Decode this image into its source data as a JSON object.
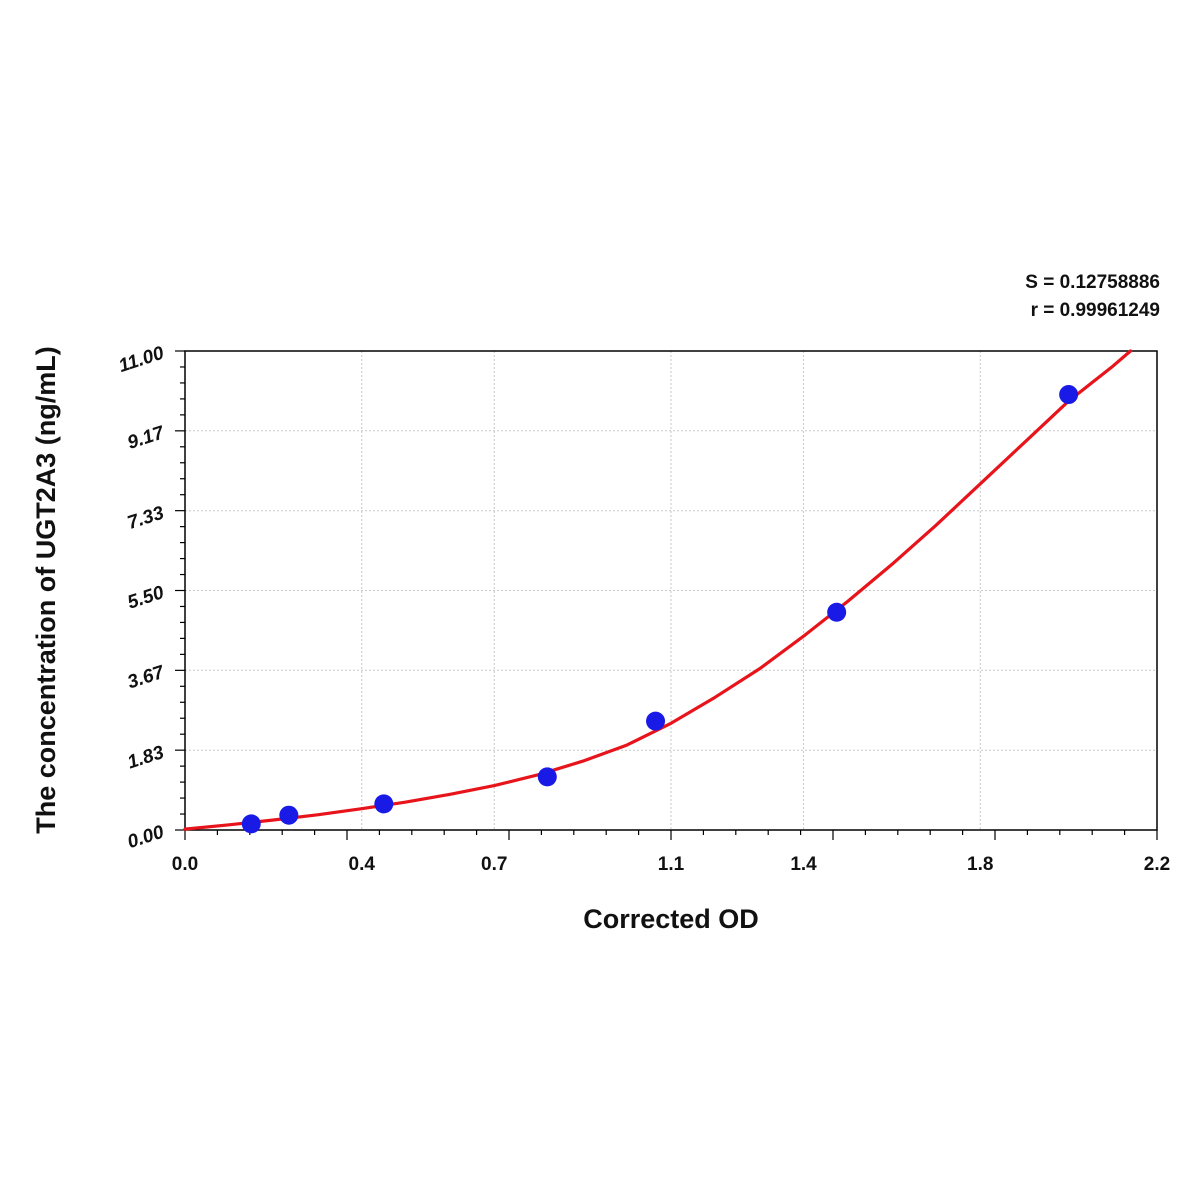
{
  "stats": {
    "s_text": "S = 0.12758886",
    "r_text": "r = 0.99961249"
  },
  "colors": {
    "curve": "#e8141b",
    "points": "#1a1ae6",
    "grid": "#c8c8c8",
    "axis": "#000000"
  },
  "chart_data": {
    "type": "scatter",
    "title": "",
    "xlabel": "Corrected OD",
    "ylabel": "The concentration of UGT2A3 (ng/mL)",
    "xlim": [
      0.0,
      2.2
    ],
    "ylim": [
      0.0,
      11.0
    ],
    "x_ticks": [
      0.0,
      0.4,
      0.7,
      1.1,
      1.4,
      1.8,
      2.2
    ],
    "x_tick_labels": [
      "0.0",
      "0.4",
      "0.7",
      "1.1",
      "1.4",
      "1.8",
      "2.2"
    ],
    "y_ticks": [
      0.0,
      1.83,
      3.67,
      5.5,
      7.33,
      9.17,
      11.0
    ],
    "y_tick_labels": [
      "0.00",
      "1.83",
      "3.67",
      "5.50",
      "7.33",
      "9.17",
      "11.00"
    ],
    "grid": true,
    "series": [
      {
        "kind": "points",
        "x": [
          0.15,
          0.235,
          0.45,
          0.82,
          1.065,
          1.475,
          2.0
        ],
        "y": [
          0.14,
          0.34,
          0.6,
          1.22,
          2.5,
          5.0,
          10.0
        ]
      },
      {
        "kind": "fit-curve",
        "x": [
          0.0,
          0.1,
          0.2,
          0.3,
          0.4,
          0.5,
          0.6,
          0.7,
          0.8,
          0.9,
          1.0,
          1.1,
          1.2,
          1.3,
          1.4,
          1.5,
          1.6,
          1.7,
          1.8,
          1.9,
          2.0,
          2.1,
          2.14
        ],
        "y": [
          0.02,
          0.12,
          0.23,
          0.35,
          0.49,
          0.64,
          0.82,
          1.02,
          1.27,
          1.58,
          1.95,
          2.45,
          3.05,
          3.7,
          4.45,
          5.25,
          6.1,
          7.0,
          7.95,
          8.9,
          9.85,
          10.65,
          11.0
        ]
      }
    ]
  }
}
